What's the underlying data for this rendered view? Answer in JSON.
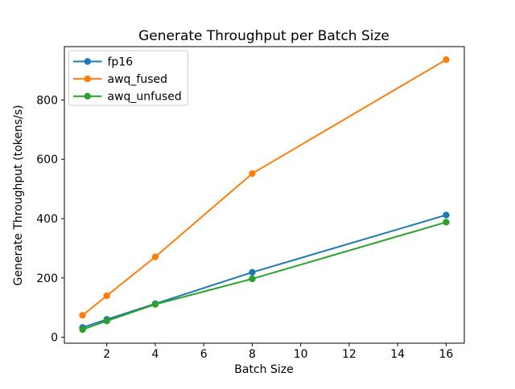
{
  "chart_data": {
    "type": "line",
    "title": "Generate Throughput per Batch Size",
    "xlabel": "Batch Size",
    "ylabel": "Generate Throughput (tokens/s)",
    "x": [
      1,
      2,
      4,
      8,
      16
    ],
    "series": [
      {
        "name": "fp16",
        "color": "#1f77b4",
        "values": [
          33,
          60,
          113,
          219,
          412
        ]
      },
      {
        "name": "awq_fused",
        "color": "#ff7f0e",
        "values": [
          74,
          140,
          271,
          552,
          936
        ]
      },
      {
        "name": "awq_unfused",
        "color": "#2ca02c",
        "values": [
          26,
          55,
          111,
          197,
          388
        ]
      }
    ],
    "xticks": [
      2,
      4,
      6,
      8,
      10,
      12,
      14,
      16
    ],
    "yticks": [
      0,
      200,
      400,
      600,
      800
    ],
    "xlim": [
      0.25,
      16.75
    ],
    "ylim": [
      -20,
      980
    ],
    "grid": false,
    "legend_position": "upper left",
    "marker": "o",
    "line_width": 2,
    "marker_radius": 4.2,
    "background_color": "#ffffff",
    "spine_color": "#000000",
    "legend_border_color": "#cccccc"
  }
}
